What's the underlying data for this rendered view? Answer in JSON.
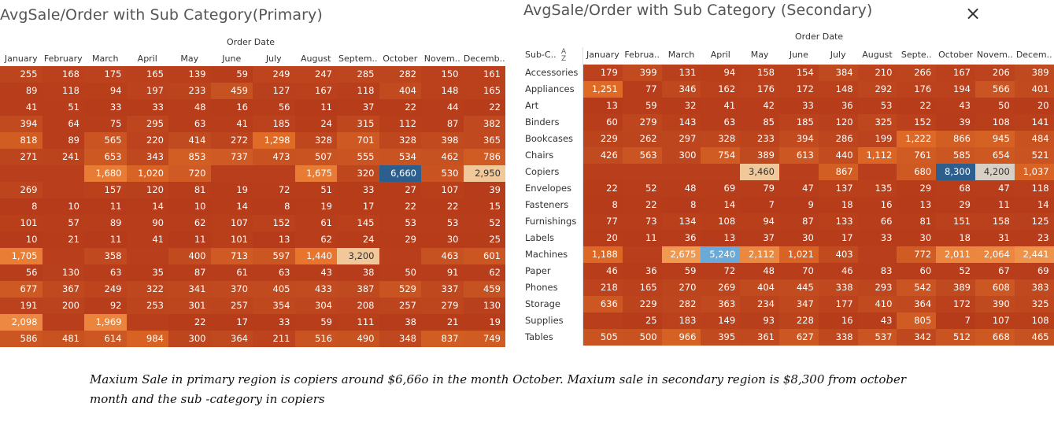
{
  "close_icon": "×",
  "note": "Maxium Sale in primary region is copiers around $6,66o in the month October. Maxium sale in secondary region is $8,300 from october month and the sub -category in copiers",
  "colors": {
    "scale_low": "#b93e1c",
    "scale_mid": "#e2782f",
    "scale_high": "#f0c89a",
    "scale_max": "#2d5f8e",
    "cell_text_light": "#ffffff",
    "cell_text_dark": "#333333"
  },
  "chart_data": [
    {
      "type": "heatmap",
      "title": "AvgSale/Order with Sub Category(Primary)",
      "column_group_label": "Order Date",
      "columns": [
        "January",
        "February",
        "March",
        "April",
        "May",
        "June",
        "July",
        "August",
        "Septem..",
        "October",
        "Novem..",
        "Decemb.."
      ],
      "row_header": "",
      "rows": [
        "",
        "",
        "",
        "",
        "",
        "",
        "",
        "",
        "",
        "",
        "",
        "",
        "",
        "",
        "",
        "",
        ""
      ],
      "values": [
        [
          255,
          168,
          175,
          165,
          139,
          59,
          249,
          247,
          285,
          282,
          150,
          161
        ],
        [
          89,
          118,
          94,
          197,
          233,
          459,
          127,
          167,
          118,
          404,
          148,
          165
        ],
        [
          41,
          51,
          33,
          33,
          48,
          16,
          56,
          11,
          37,
          22,
          44,
          22
        ],
        [
          394,
          64,
          75,
          295,
          63,
          41,
          185,
          24,
          315,
          112,
          87,
          382
        ],
        [
          818,
          89,
          565,
          220,
          414,
          272,
          1298,
          328,
          701,
          328,
          398,
          365
        ],
        [
          271,
          241,
          653,
          343,
          853,
          737,
          473,
          507,
          555,
          534,
          462,
          786
        ],
        [
          null,
          null,
          1680,
          1020,
          720,
          null,
          null,
          1675,
          320,
          6660,
          530,
          2950
        ],
        [
          269,
          null,
          157,
          120,
          81,
          19,
          72,
          51,
          33,
          27,
          107,
          39
        ],
        [
          8,
          10,
          11,
          14,
          10,
          14,
          8,
          19,
          17,
          22,
          22,
          15
        ],
        [
          101,
          57,
          89,
          90,
          62,
          107,
          152,
          61,
          145,
          53,
          53,
          52
        ],
        [
          10,
          21,
          11,
          41,
          11,
          101,
          13,
          62,
          24,
          29,
          30,
          25
        ],
        [
          1705,
          null,
          358,
          null,
          400,
          713,
          597,
          1440,
          3200,
          null,
          463,
          601
        ],
        [
          56,
          130,
          63,
          35,
          87,
          61,
          63,
          43,
          38,
          50,
          91,
          62
        ],
        [
          677,
          367,
          249,
          322,
          341,
          370,
          405,
          433,
          387,
          529,
          337,
          459
        ],
        [
          191,
          200,
          92,
          253,
          301,
          257,
          354,
          304,
          208,
          257,
          279,
          130
        ],
        [
          2098,
          null,
          1969,
          null,
          22,
          17,
          33,
          59,
          111,
          38,
          21,
          19
        ],
        [
          586,
          481,
          614,
          984,
          300,
          364,
          211,
          516,
          490,
          348,
          837,
          749
        ]
      ]
    },
    {
      "type": "heatmap",
      "title": "AvgSale/Order with Sub Category (Secondary)",
      "column_group_label": "Order Date",
      "columns": [
        "January",
        "Februa..",
        "March",
        "April",
        "May",
        "June",
        "July",
        "August",
        "Septe..",
        "October",
        "Novem..",
        "Decem.."
      ],
      "row_header": "Sub-C..",
      "rows": [
        "Accessories",
        "Appliances",
        "Art",
        "Binders",
        "Bookcases",
        "Chairs",
        "Copiers",
        "Envelopes",
        "Fasteners",
        "Furnishings",
        "Labels",
        "Machines",
        "Paper",
        "Phones",
        "Storage",
        "Supplies",
        "Tables"
      ],
      "values": [
        [
          179,
          399,
          131,
          94,
          158,
          154,
          384,
          210,
          266,
          167,
          206,
          389
        ],
        [
          1251,
          77,
          346,
          162,
          176,
          172,
          148,
          292,
          176,
          194,
          566,
          401
        ],
        [
          13,
          59,
          32,
          41,
          42,
          33,
          36,
          53,
          22,
          43,
          50,
          20
        ],
        [
          60,
          279,
          143,
          63,
          85,
          185,
          120,
          325,
          152,
          39,
          108,
          141
        ],
        [
          229,
          262,
          297,
          328,
          233,
          394,
          286,
          199,
          1222,
          866,
          945,
          484
        ],
        [
          426,
          563,
          300,
          754,
          389,
          613,
          440,
          1112,
          761,
          585,
          654,
          521
        ],
        [
          null,
          null,
          null,
          null,
          3460,
          null,
          867,
          null,
          680,
          8300,
          4200,
          1037
        ],
        [
          22,
          52,
          48,
          69,
          79,
          47,
          137,
          135,
          29,
          68,
          47,
          118
        ],
        [
          8,
          22,
          8,
          14,
          7,
          9,
          18,
          16,
          13,
          29,
          11,
          14
        ],
        [
          77,
          73,
          134,
          108,
          94,
          87,
          133,
          66,
          81,
          151,
          158,
          125
        ],
        [
          20,
          11,
          36,
          13,
          37,
          30,
          17,
          33,
          30,
          18,
          31,
          23
        ],
        [
          1188,
          null,
          2675,
          5240,
          2112,
          1021,
          403,
          null,
          772,
          2011,
          2064,
          2441
        ],
        [
          46,
          36,
          59,
          72,
          48,
          70,
          46,
          83,
          60,
          52,
          67,
          69
        ],
        [
          218,
          165,
          270,
          269,
          404,
          445,
          338,
          293,
          542,
          389,
          608,
          383
        ],
        [
          636,
          229,
          282,
          363,
          234,
          347,
          177,
          410,
          364,
          172,
          390,
          325
        ],
        [
          null,
          25,
          183,
          149,
          93,
          228,
          16,
          43,
          805,
          7,
          107,
          108
        ],
        [
          505,
          500,
          966,
          395,
          361,
          627,
          338,
          537,
          342,
          512,
          668,
          465
        ]
      ]
    }
  ]
}
